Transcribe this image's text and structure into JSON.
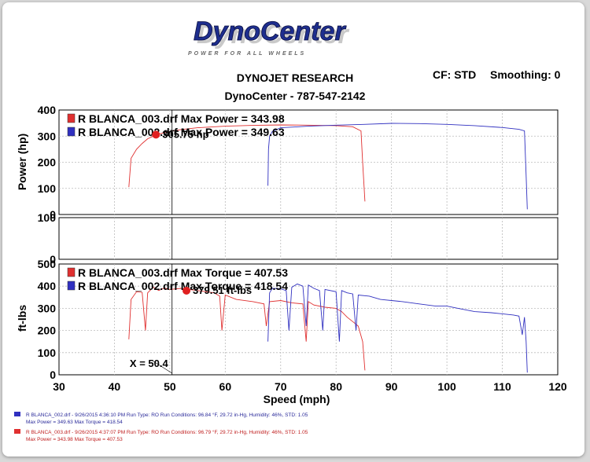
{
  "logo": {
    "text": "DynoCenter",
    "tagline": "POWER FOR ALL WHEELS"
  },
  "header": {
    "line1": "DYNOJET RESEARCH",
    "line2": "DynoCenter - 787-547-2142",
    "cf": "CF: STD",
    "smoothing": "Smoothing: 0"
  },
  "colors": {
    "run_red": "#e03030",
    "run_blue": "#3030c0",
    "grid": "#bbbbbb",
    "cursor": "#000000"
  },
  "chart_data": [
    {
      "type": "line",
      "panel": "power",
      "ylabel": "Power (hp)",
      "ylim": [
        0,
        400
      ],
      "yticks": [
        0,
        100,
        200,
        300,
        400
      ],
      "xlim": [
        30,
        120
      ],
      "legend": [
        {
          "label": "R BLANCA_003.drf Max Power = 343.98",
          "color": "#e03030"
        },
        {
          "label": "R BLANCA_002.drf Max Power = 349.63",
          "color": "#3030c0"
        }
      ],
      "annotation": {
        "text": "305.75 hp",
        "x": 47.5,
        "y": 305.75
      },
      "series": [
        {
          "name": "R BLANCA_003.drf",
          "x": [
            42.6,
            43,
            44,
            45,
            46,
            47,
            48,
            50,
            52,
            55,
            60,
            65,
            70,
            75,
            80,
            83,
            84.5,
            84.8,
            85.2
          ],
          "y": [
            105,
            215,
            250,
            272,
            290,
            300,
            308,
            318,
            325,
            332,
            338,
            341,
            343,
            342,
            340,
            336,
            320,
            200,
            50
          ]
        },
        {
          "name": "R BLANCA_002.drf",
          "x": [
            67.7,
            67.8,
            68,
            68.5,
            70,
            75,
            80,
            85,
            90,
            95,
            100,
            105,
            110,
            113,
            114,
            114.3,
            114.5
          ],
          "y": [
            110,
            250,
            300,
            318,
            332,
            338,
            342,
            345,
            349,
            348,
            345,
            340,
            333,
            326,
            320,
            150,
            20
          ]
        }
      ]
    },
    {
      "type": "line",
      "panel": "middle",
      "ylim": [
        0,
        100
      ],
      "yticks": [
        0,
        100
      ],
      "xlim": [
        30,
        120
      ],
      "series": []
    },
    {
      "type": "line",
      "panel": "torque",
      "ylabel": "ft-lbs",
      "xlabel": "Speed (mph)",
      "ylim": [
        0,
        500
      ],
      "yticks": [
        0,
        100,
        200,
        300,
        400,
        500
      ],
      "xlim": [
        30,
        120
      ],
      "xticks": [
        30,
        40,
        50,
        60,
        70,
        80,
        90,
        100,
        110,
        120
      ],
      "legend": [
        {
          "label": "R BLANCA_003.drf Max Torque = 407.53",
          "color": "#e03030"
        },
        {
          "label": "R BLANCA_002.drf Max Torque = 418.54",
          "color": "#3030c0"
        }
      ],
      "annotation": {
        "text": "379.51 ft-lbs",
        "x": 53,
        "y": 379.51
      },
      "cursor": {
        "label": "X = 50.4",
        "x": 50.4
      },
      "series": [
        {
          "name": "R BLANCA_003.drf",
          "x": [
            42.6,
            43,
            44,
            45,
            45.6,
            46,
            47,
            48,
            49,
            50,
            52,
            55,
            58,
            59,
            59.4,
            60,
            62,
            65,
            67,
            67.4,
            68,
            70,
            72,
            74,
            74.6,
            75,
            76,
            78,
            80,
            81,
            82,
            83,
            84,
            84.8,
            85.2
          ],
          "y": [
            160,
            340,
            375,
            372,
            200,
            370,
            395,
            380,
            392,
            385,
            390,
            380,
            370,
            355,
            200,
            360,
            340,
            330,
            320,
            220,
            330,
            335,
            325,
            320,
            150,
            330,
            315,
            305,
            300,
            285,
            260,
            240,
            220,
            150,
            20
          ]
        },
        {
          "name": "R BLANCA_002.drf",
          "x": [
            67.7,
            68,
            68.5,
            70,
            71,
            71.5,
            72,
            73,
            74,
            74.6,
            75,
            76,
            77,
            77.6,
            78,
            80,
            80.6,
            81,
            82,
            83,
            83.6,
            84,
            86,
            88,
            90,
            92,
            95,
            98,
            100,
            102,
            104,
            105,
            108,
            110,
            112,
            113,
            113.6,
            114,
            114.3,
            114.5
          ],
          "y": [
            150,
            370,
            390,
            388,
            380,
            200,
            395,
            410,
            400,
            220,
            405,
            390,
            380,
            200,
            385,
            375,
            150,
            380,
            370,
            365,
            200,
            360,
            355,
            340,
            335,
            330,
            320,
            310,
            310,
            300,
            290,
            285,
            280,
            275,
            270,
            265,
            180,
            260,
            150,
            10
          ]
        }
      ]
    }
  ],
  "footer": [
    {
      "marker_color": "#3030c0",
      "line1": "R BLANCA_002.drf - 9/26/2015 4:36:10 PM  Run Type: RO  Run Conditions: 96.84 °F, 29.72 in-Hg,  Humidity:  46%, STD: 1.05",
      "line2": "Max Power = 349.63  Max Torque = 418.54"
    },
    {
      "marker_color": "#e03030",
      "line1": "R BLANCA_003.drf - 9/26/2015 4:37:07 PM  Run Type: RO  Run Conditions: 96.79 °F, 29.72 in-Hg,  Humidity:  46%, STD: 1.05",
      "line2": "Max Power = 343.98  Max Torque = 407.53"
    }
  ]
}
